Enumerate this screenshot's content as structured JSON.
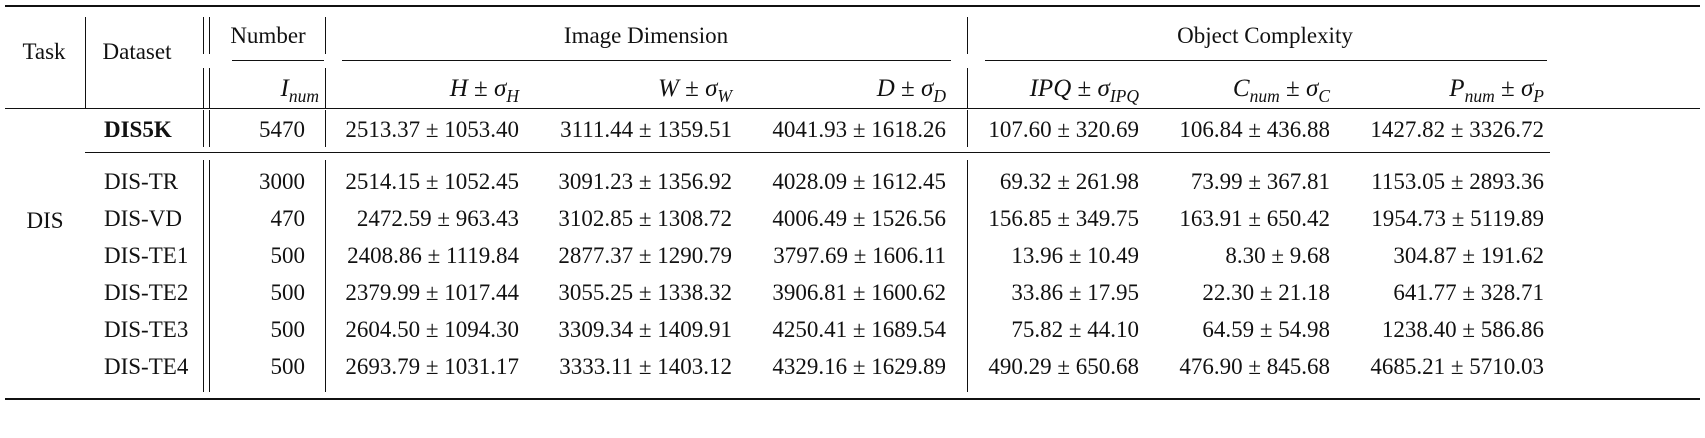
{
  "headers": {
    "task": "Task",
    "dataset": "Dataset",
    "number": "Number",
    "image_dimension": "Image Dimension",
    "object_complexity": "Object Complexity",
    "sub": {
      "inum": {
        "base": "I",
        "sub": "num"
      },
      "h": {
        "base": "H",
        "pm": " ± ",
        "sigma": "σ",
        "sub": "H"
      },
      "w": {
        "base": "W",
        "pm": " ± ",
        "sigma": "σ",
        "sub": "W"
      },
      "d": {
        "base": "D",
        "pm": " ± ",
        "sigma": "σ",
        "sub": "D"
      },
      "ipq": {
        "base": "IPQ",
        "pm": " ± ",
        "sigma": "σ",
        "sub": "IPQ"
      },
      "cnum": {
        "base": "C",
        "bsub": "num",
        "pm": " ± ",
        "sigma": "σ",
        "sub": "C"
      },
      "pnum": {
        "base": "P",
        "bsub": "num",
        "pm": " ± ",
        "sigma": "σ",
        "sub": "P"
      }
    }
  },
  "task_label": "DIS",
  "rows": [
    {
      "dataset": "DIS5K",
      "bold": true,
      "number": "5470",
      "h": "2513.37 ± 1053.40",
      "w": "3111.44 ± 1359.51",
      "d": "4041.93 ± 1618.26",
      "ipq": "107.60 ± 320.69",
      "c": "106.84 ± 436.88",
      "p": "1427.82 ± 3326.72"
    },
    {
      "dataset": "DIS-TR",
      "number": "3000",
      "h": "2514.15 ± 1052.45",
      "w": "3091.23 ± 1356.92",
      "d": "4028.09 ± 1612.45",
      "ipq": "69.32 ± 261.98",
      "c": "73.99 ± 367.81",
      "p": "1153.05 ± 2893.36"
    },
    {
      "dataset": "DIS-VD",
      "number": "470",
      "h": "2472.59 ± 963.43",
      "w": "3102.85 ± 1308.72",
      "d": "4006.49 ± 1526.56",
      "ipq": "156.85 ± 349.75",
      "c": "163.91 ± 650.42",
      "p": "1954.73 ± 5119.89"
    },
    {
      "dataset": "DIS-TE1",
      "number": "500",
      "h": "2408.86 ± 1119.84",
      "w": "2877.37 ± 1290.79",
      "d": "3797.69 ± 1606.11",
      "ipq": "13.96 ± 10.49",
      "c": "8.30 ± 9.68",
      "p": "304.87 ± 191.62"
    },
    {
      "dataset": "DIS-TE2",
      "number": "500",
      "h": "2379.99 ± 1017.44",
      "w": "3055.25 ± 1338.32",
      "d": "3906.81 ± 1600.62",
      "ipq": "33.86 ± 17.95",
      "c": "22.30 ± 21.18",
      "p": "641.77 ± 328.71"
    },
    {
      "dataset": "DIS-TE3",
      "number": "500",
      "h": "2604.50 ± 1094.30",
      "w": "3309.34 ± 1409.91",
      "d": "4250.41 ± 1689.54",
      "ipq": "75.82 ± 44.10",
      "c": "64.59 ± 54.98",
      "p": "1238.40 ± 586.86"
    },
    {
      "dataset": "DIS-TE4",
      "number": "500",
      "h": "2693.79 ± 1031.17",
      "w": "3333.11 ± 1403.12",
      "d": "4329.16 ± 1629.89",
      "ipq": "490.29 ± 650.68",
      "c": "476.90 ± 845.68",
      "p": "4685.21 ± 5710.03"
    }
  ]
}
